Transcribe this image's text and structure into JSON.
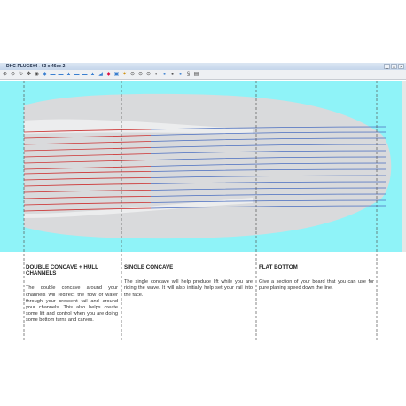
{
  "window": {
    "title": "DHC-PLUGS#4 - 63 x 46ee-2",
    "controls": [
      "_",
      "□",
      "×"
    ]
  },
  "toolbar": {
    "icons": [
      "zoom-in-icon",
      "zoom-out-icon",
      "rotate-icon",
      "pan-icon",
      "camera-icon",
      "shape-icon",
      "shape-icon",
      "shape-icon",
      "shape-icon",
      "shape-icon",
      "shape-icon",
      "shape-icon",
      "shape-icon",
      "view-icon",
      "view-icon",
      "view-icon",
      "view-icon",
      "view-icon",
      "view-icon",
      "view-icon",
      "view-icon",
      "view-icon",
      "view-icon",
      "view-icon",
      "view-icon"
    ]
  },
  "colors": {
    "background_cyan": "#8ff3f8",
    "board": "#d9dadc",
    "contour_red": "#cc3333",
    "contour_blue": "#4a6ec0",
    "divider": "#555555"
  },
  "sections": [
    {
      "heading": "DOUBLE CONCAVE + HULL CHANNELS",
      "body": "The double concave around your channels will redirect the flow of water through your crescent tail and around your channels. This also helps create some lift and control when you are doing some bottom turns and carves."
    },
    {
      "heading": "SINGLE CONCAVE",
      "body": "The single concave will help produce lift while you are riding the wave. It will also initially help set your rail into the face."
    },
    {
      "heading": "FLAT BOTTOM",
      "body": "Give a section of your board that you can use for pure planing speed down the line."
    }
  ]
}
